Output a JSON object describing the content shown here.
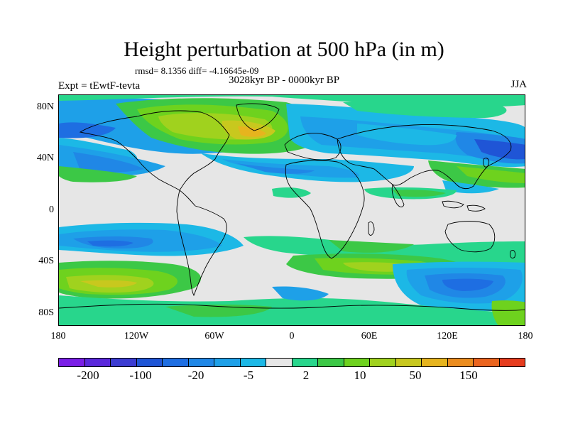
{
  "title": "Height perturbation at 500 hPa (in m)",
  "stats": "rmsd= 8.1356 diff= -4.16645e-09",
  "experiment": "Expt = tEwtF-tevta",
  "period": "3028kyr BP - 0000kyr BP",
  "season": "JJA",
  "axes": {
    "y_ticks": [
      "80N",
      "40N",
      "0",
      "40S",
      "80S"
    ],
    "x_ticks": [
      "180",
      "120W",
      "60W",
      "0",
      "60E",
      "120E",
      "180"
    ]
  },
  "colorbar": {
    "colors": [
      "#7a1ee6",
      "#5a28dc",
      "#3c3cd2",
      "#1f55d6",
      "#1e6ee2",
      "#2087e6",
      "#1ea0e8",
      "#1cb8e6",
      "#e6e6e6",
      "#28d68c",
      "#3cc846",
      "#6ed21e",
      "#a0d21e",
      "#c8c81e",
      "#e6b41e",
      "#eb8c1e",
      "#eb641e",
      "#e63c1e"
    ],
    "labels": [
      "-200",
      "-100",
      "-20",
      "-5",
      "2",
      "10",
      "50",
      "150"
    ]
  },
  "map": {
    "projection": "cylindrical-equidistant",
    "lon_range": [
      -180,
      180
    ],
    "lat_range": [
      -90,
      90
    ]
  }
}
